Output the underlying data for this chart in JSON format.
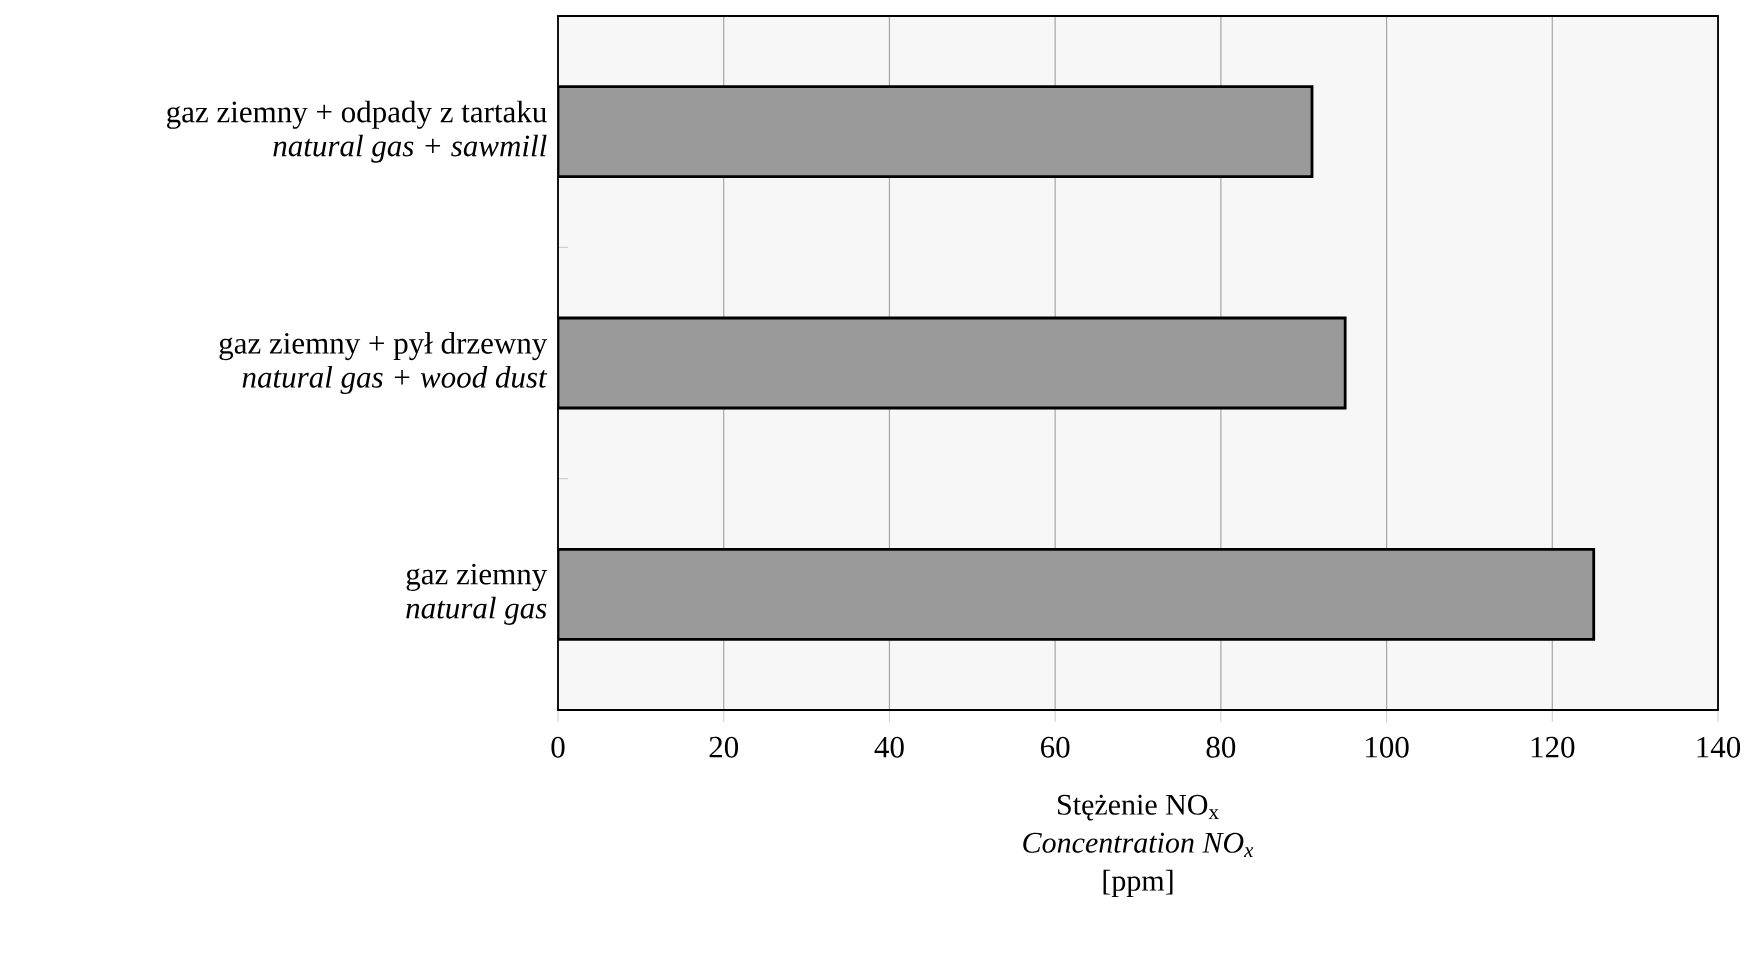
{
  "chart_data": {
    "type": "bar",
    "orientation": "horizontal",
    "categories": [
      "gaz ziemny + odpady z tartaku\n*natural gas + sawmill*",
      "gaz ziemny + pył drzewny\n*natural gas + wood dust*",
      "gaz ziemny\n*natural gas*"
    ],
    "values": [
      91,
      95,
      125
    ],
    "color": "#9a9a9a",
    "xlabel": "Stężenie NO$_{x}$\n*Concentration NO$_{x}$*\n[ppm]",
    "xlim": [
      0,
      140
    ],
    "xticks": [
      0,
      20,
      40,
      60,
      80,
      100,
      120,
      140
    ],
    "grid": "x"
  }
}
